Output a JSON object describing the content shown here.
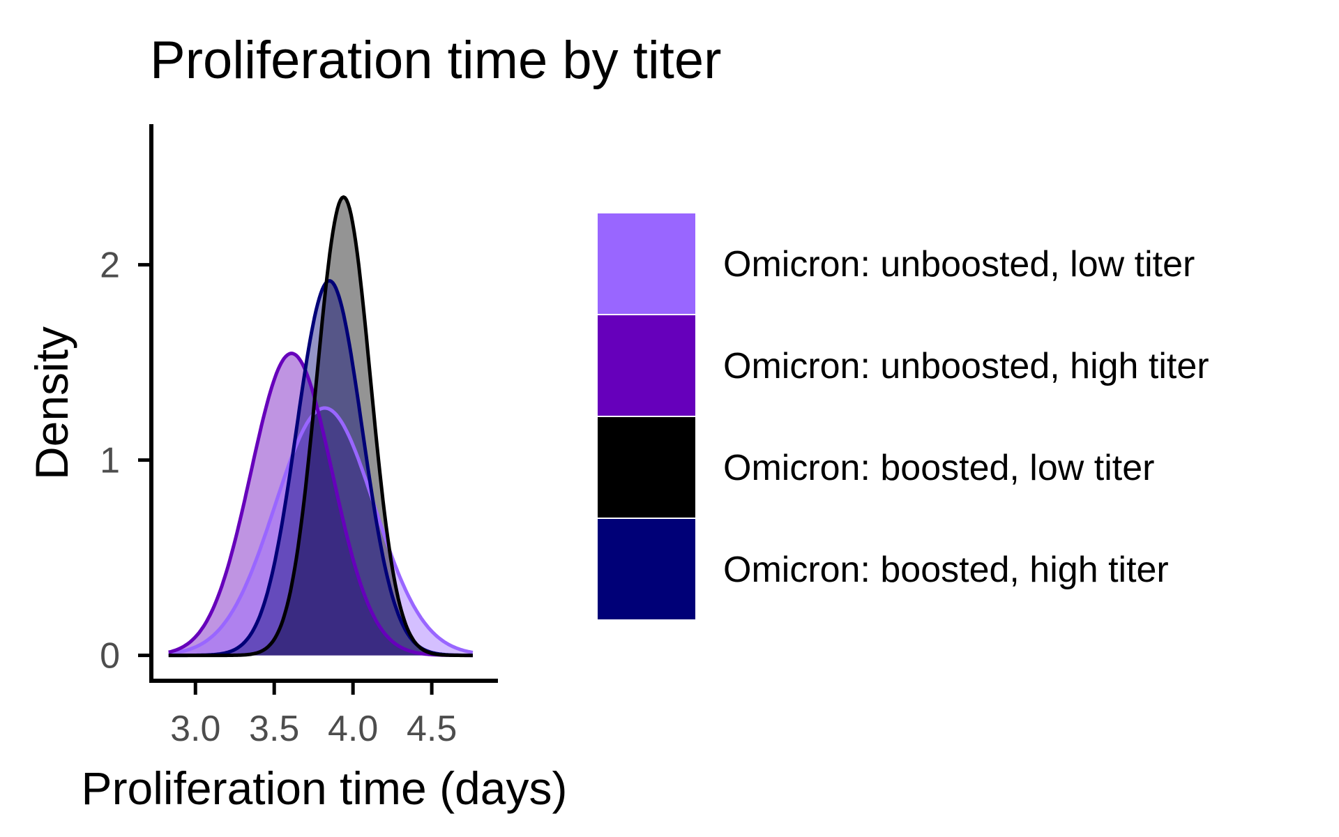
{
  "chart_data": {
    "type": "area",
    "title": "Proliferation time by titer",
    "xlabel": "Proliferation time (days)",
    "ylabel": "Density",
    "xlim": [
      2.72,
      4.92
    ],
    "ylim": [
      -0.13,
      2.72
    ],
    "xticks": [
      3.0,
      3.5,
      4.0,
      4.5
    ],
    "xtick_labels": [
      "3.0",
      "3.5",
      "4.0",
      "4.5"
    ],
    "yticks": [
      0,
      1,
      2
    ],
    "ytick_labels": [
      "0",
      "1",
      "2"
    ],
    "grid": false,
    "legend_position": "right",
    "series": [
      {
        "name": "Omicron: unboosted, low titer",
        "color": "#9966ff",
        "mean": 3.82,
        "sd": 0.315,
        "x_range": [
          2.83,
          4.76
        ]
      },
      {
        "name": "Omicron: unboosted, high titer",
        "color": "#6600bb",
        "mean": 3.61,
        "sd": 0.258,
        "x_range": [
          2.83,
          4.76
        ]
      },
      {
        "name": "Omicron: boosted, low titer",
        "color": "#000000",
        "mean": 3.94,
        "sd": 0.17,
        "x_range": [
          2.83,
          4.76
        ]
      },
      {
        "name": "Omicron: boosted, high titer",
        "color": "#000077",
        "mean": 3.85,
        "sd": 0.208,
        "x_range": [
          2.83,
          4.76
        ]
      }
    ]
  }
}
